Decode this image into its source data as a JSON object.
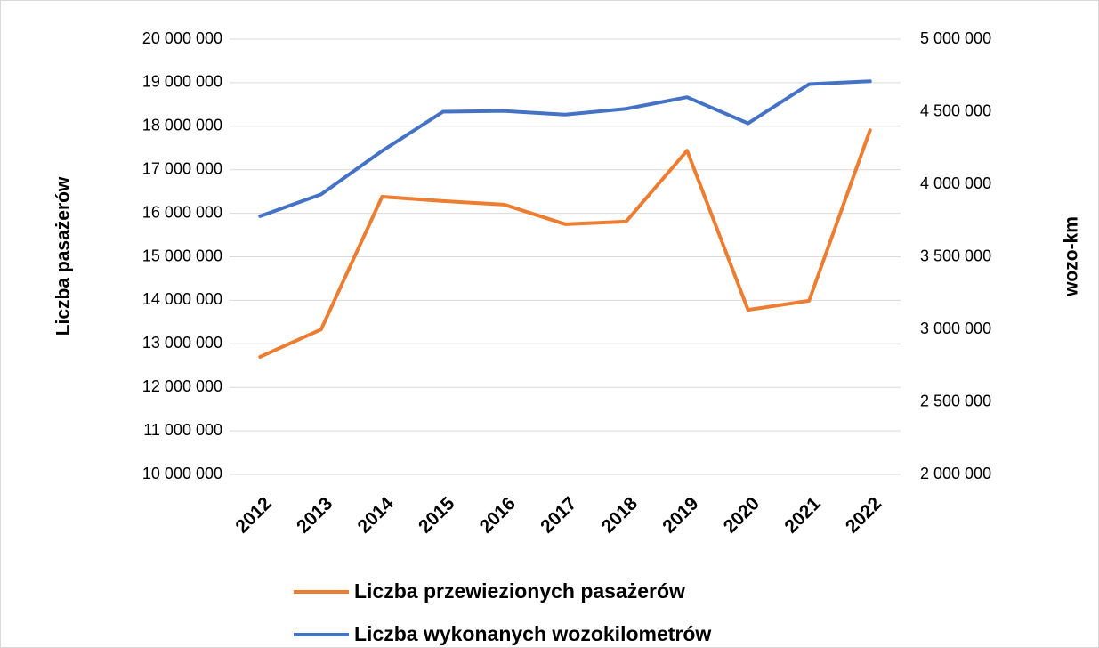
{
  "chart_data": {
    "type": "line",
    "categories": [
      "2012",
      "2013",
      "2014",
      "2015",
      "2016",
      "2017",
      "2018",
      "2019",
      "2020",
      "2021",
      "2022"
    ],
    "series": [
      {
        "name": "Liczba przewiezionych pasażerów",
        "color": "#ed7d31",
        "axis": "y",
        "values": [
          12700000,
          13330000,
          16380000,
          16280000,
          16200000,
          15750000,
          15810000,
          17440000,
          13780000,
          13990000,
          17910000
        ]
      },
      {
        "name": "Liczba wykonanych wozokilometrów",
        "color": "#4472c4",
        "axis": "y2",
        "values": [
          3780000,
          3930000,
          4230000,
          4500000,
          4505000,
          4480000,
          4520000,
          4600000,
          4420000,
          4690000,
          4710000
        ]
      }
    ],
    "ylabel": "Liczba pasażerów",
    "y2label": "wozo-km",
    "ylim": [
      10000000,
      20000000
    ],
    "yticks": [
      {
        "value": 10000000,
        "label": "10 000 000"
      },
      {
        "value": 11000000,
        "label": "11 000 000"
      },
      {
        "value": 12000000,
        "label": "12 000 000"
      },
      {
        "value": 13000000,
        "label": "13 000 000"
      },
      {
        "value": 14000000,
        "label": "14 000 000"
      },
      {
        "value": 15000000,
        "label": "15 000 000"
      },
      {
        "value": 16000000,
        "label": "16 000 000"
      },
      {
        "value": 17000000,
        "label": "17 000 000"
      },
      {
        "value": 18000000,
        "label": "18 000 000"
      },
      {
        "value": 19000000,
        "label": "19 000 000"
      },
      {
        "value": 20000000,
        "label": "20 000 000"
      }
    ],
    "y2lim": [
      2000000,
      5000000
    ],
    "y2ticks": [
      {
        "value": 2000000,
        "label": "2 000 000"
      },
      {
        "value": 2500000,
        "label": "2 500 000"
      },
      {
        "value": 3000000,
        "label": "3 000 000"
      },
      {
        "value": 3500000,
        "label": "3 500 000"
      },
      {
        "value": 4000000,
        "label": "4 000 000"
      },
      {
        "value": 4500000,
        "label": "4 500 000"
      },
      {
        "value": 5000000,
        "label": "5 000 000"
      }
    ],
    "grid": true,
    "legend": "bottom"
  }
}
